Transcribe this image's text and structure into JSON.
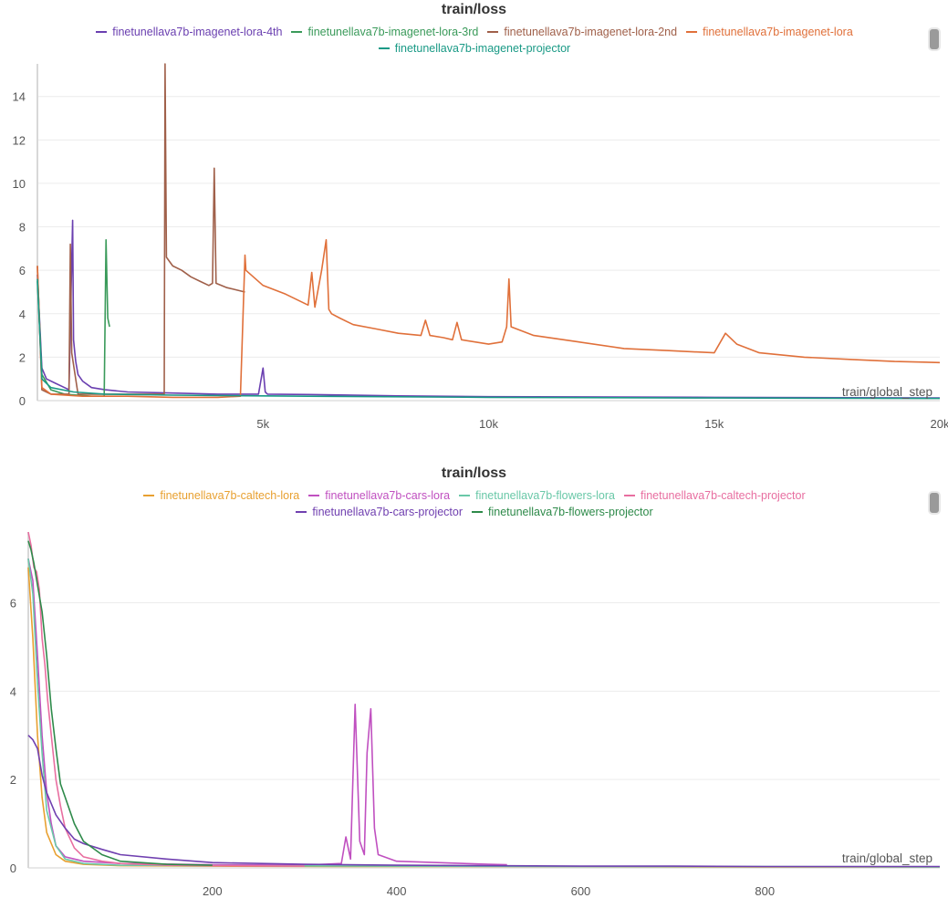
{
  "chart_data": [
    {
      "type": "line",
      "title": "train/loss",
      "xlabel": "train/global_step",
      "ylabel": "",
      "xlim": [
        0,
        20000
      ],
      "ylim": [
        0,
        15.5
      ],
      "xticks": [
        5000,
        10000,
        15000,
        20000
      ],
      "xtick_labels": [
        "5k",
        "10k",
        "15k",
        "20k"
      ],
      "yticks": [
        0,
        2,
        4,
        6,
        8,
        10,
        12,
        14
      ],
      "grid": true,
      "legend_position": "top",
      "series": [
        {
          "name": "finetunellava7b-imagenet-lora-4th",
          "color": "#6a3fb0",
          "x": [
            0,
            100,
            200,
            400,
            600,
            700,
            780,
            800,
            830,
            850,
            900,
            1000,
            1200,
            1500,
            2000,
            3000,
            4000,
            4900,
            5000,
            5050,
            5100,
            6000,
            8000,
            10000,
            15000,
            20000
          ],
          "y": [
            5.8,
            1.5,
            1.0,
            0.8,
            0.6,
            0.5,
            8.3,
            2.8,
            2.2,
            1.8,
            1.2,
            0.9,
            0.6,
            0.5,
            0.4,
            0.35,
            0.3,
            0.3,
            1.5,
            0.4,
            0.3,
            0.28,
            0.22,
            0.18,
            0.15,
            0.12
          ]
        },
        {
          "name": "finetunellava7b-imagenet-lora-3rd",
          "color": "#3a9a5a",
          "x": [
            0,
            100,
            300,
            600,
            900,
            1200,
            1480,
            1520,
            1560,
            1600
          ],
          "y": [
            5.5,
            1.2,
            0.5,
            0.3,
            0.25,
            0.2,
            0.2,
            7.4,
            3.8,
            3.4
          ]
        },
        {
          "name": "finetunellava7b-imagenet-lora-2nd",
          "color": "#a0604a",
          "x": [
            0,
            100,
            300,
            700,
            730,
            760,
            900,
            1500,
            2500,
            2810,
            2830,
            2860,
            3000,
            3200,
            3400,
            3600,
            3800,
            3880,
            3920,
            3960,
            4200,
            4600
          ],
          "y": [
            6.2,
            0.5,
            0.3,
            0.3,
            7.2,
            2.2,
            0.3,
            0.3,
            0.3,
            0.3,
            15.5,
            6.6,
            6.2,
            6.0,
            5.7,
            5.5,
            5.3,
            5.4,
            10.7,
            5.4,
            5.2,
            5.0
          ]
        },
        {
          "name": "finetunellava7b-imagenet-lora",
          "color": "#e0703a",
          "x": [
            0,
            100,
            300,
            1000,
            2000,
            3000,
            4000,
            4500,
            4600,
            4620,
            5000,
            5500,
            6000,
            6080,
            6150,
            6300,
            6400,
            6460,
            6520,
            6700,
            7000,
            7500,
            8000,
            8500,
            8600,
            8700,
            9000,
            9200,
            9300,
            9400,
            10000,
            10300,
            10400,
            10450,
            10500,
            11000,
            12000,
            13000,
            14000,
            15000,
            15250,
            15500,
            16000,
            17000,
            18000,
            19000,
            20000
          ],
          "y": [
            6.2,
            0.6,
            0.3,
            0.2,
            0.2,
            0.15,
            0.15,
            0.2,
            6.7,
            6.0,
            5.3,
            4.9,
            4.4,
            5.9,
            4.3,
            6.0,
            7.4,
            4.2,
            4.0,
            3.8,
            3.5,
            3.3,
            3.1,
            3.0,
            3.7,
            3.0,
            2.9,
            2.8,
            3.6,
            2.8,
            2.6,
            2.7,
            3.4,
            5.6,
            3.4,
            3.0,
            2.7,
            2.4,
            2.3,
            2.2,
            3.1,
            2.6,
            2.2,
            2.0,
            1.9,
            1.8,
            1.75
          ]
        },
        {
          "name": "finetunellava7b-imagenet-projector",
          "color": "#1a9a86",
          "x": [
            0,
            100,
            300,
            800,
            1500,
            3000,
            6000,
            10000,
            15000,
            20000
          ],
          "y": [
            5.6,
            1.0,
            0.6,
            0.4,
            0.3,
            0.25,
            0.2,
            0.15,
            0.12,
            0.1
          ]
        }
      ]
    },
    {
      "type": "line",
      "title": "train/loss",
      "xlabel": "train/global_step",
      "ylabel": "",
      "xlim": [
        0,
        990
      ],
      "ylim": [
        0,
        7.6
      ],
      "xticks": [
        200,
        400,
        600,
        800
      ],
      "xtick_labels": [
        "200",
        "400",
        "600",
        "800"
      ],
      "yticks": [
        0,
        2,
        4,
        6
      ],
      "grid": true,
      "legend_position": "top",
      "series": [
        {
          "name": "finetunellava7b-caltech-lora",
          "color": "#e8a030",
          "x": [
            0,
            5,
            10,
            15,
            20,
            30,
            40,
            60,
            100,
            200,
            400,
            600,
            800,
            990
          ],
          "y": [
            6.8,
            5.2,
            3.0,
            1.6,
            0.8,
            0.3,
            0.15,
            0.08,
            0.05,
            0.04,
            0.03,
            0.03,
            0.02,
            0.02
          ]
        },
        {
          "name": "finetunellava7b-cars-lora",
          "color": "#c050c0",
          "x": [
            0,
            5,
            10,
            15,
            20,
            25,
            30,
            40,
            60,
            100,
            200,
            300,
            340,
            345,
            350,
            355,
            360,
            365,
            368,
            372,
            376,
            380,
            400,
            500,
            520
          ],
          "y": [
            7.0,
            6.5,
            4.8,
            3.0,
            1.7,
            1.0,
            0.5,
            0.25,
            0.15,
            0.1,
            0.07,
            0.06,
            0.1,
            0.7,
            0.2,
            3.7,
            0.6,
            0.3,
            2.6,
            3.6,
            0.9,
            0.3,
            0.15,
            0.08,
            0.07
          ]
        },
        {
          "name": "finetunellava7b-flowers-lora",
          "color": "#6ac8a8",
          "x": [
            0,
            5,
            10,
            15,
            20,
            30,
            40,
            60,
            100,
            200,
            400,
            600,
            800,
            990
          ],
          "y": [
            7.0,
            6.2,
            4.2,
            2.6,
            1.3,
            0.5,
            0.2,
            0.1,
            0.06,
            0.05,
            0.04,
            0.03,
            0.03,
            0.02
          ]
        },
        {
          "name": "finetunellava7b-caltech-projector",
          "color": "#e86ea0",
          "x": [
            0,
            3,
            6,
            9,
            12,
            15,
            18,
            21,
            25,
            30,
            35,
            40,
            50,
            60,
            80,
            100,
            150,
            200,
            300
          ],
          "y": [
            7.6,
            7.3,
            6.8,
            6.7,
            6.3,
            5.2,
            4.6,
            3.8,
            3.0,
            2.0,
            1.4,
            0.9,
            0.45,
            0.25,
            0.15,
            0.1,
            0.06,
            0.05,
            0.04
          ]
        },
        {
          "name": "finetunellava7b-cars-projector",
          "color": "#7040b0",
          "x": [
            0,
            5,
            10,
            15,
            20,
            30,
            40,
            50,
            60,
            80,
            100,
            150,
            200,
            300,
            400,
            500,
            600,
            700,
            800,
            990
          ],
          "y": [
            3.0,
            2.9,
            2.7,
            2.1,
            1.7,
            1.2,
            0.9,
            0.65,
            0.55,
            0.42,
            0.3,
            0.2,
            0.12,
            0.08,
            0.06,
            0.05,
            0.04,
            0.04,
            0.03,
            0.03
          ]
        },
        {
          "name": "finetunellava7b-flowers-projector",
          "color": "#2e8a4a",
          "x": [
            0,
            3,
            6,
            10,
            15,
            20,
            25,
            30,
            35,
            40,
            50,
            60,
            80,
            100,
            150,
            200
          ],
          "y": [
            7.4,
            7.2,
            6.9,
            6.4,
            5.8,
            4.8,
            3.6,
            2.7,
            1.9,
            1.6,
            1.0,
            0.6,
            0.3,
            0.15,
            0.08,
            0.06
          ]
        }
      ]
    }
  ]
}
